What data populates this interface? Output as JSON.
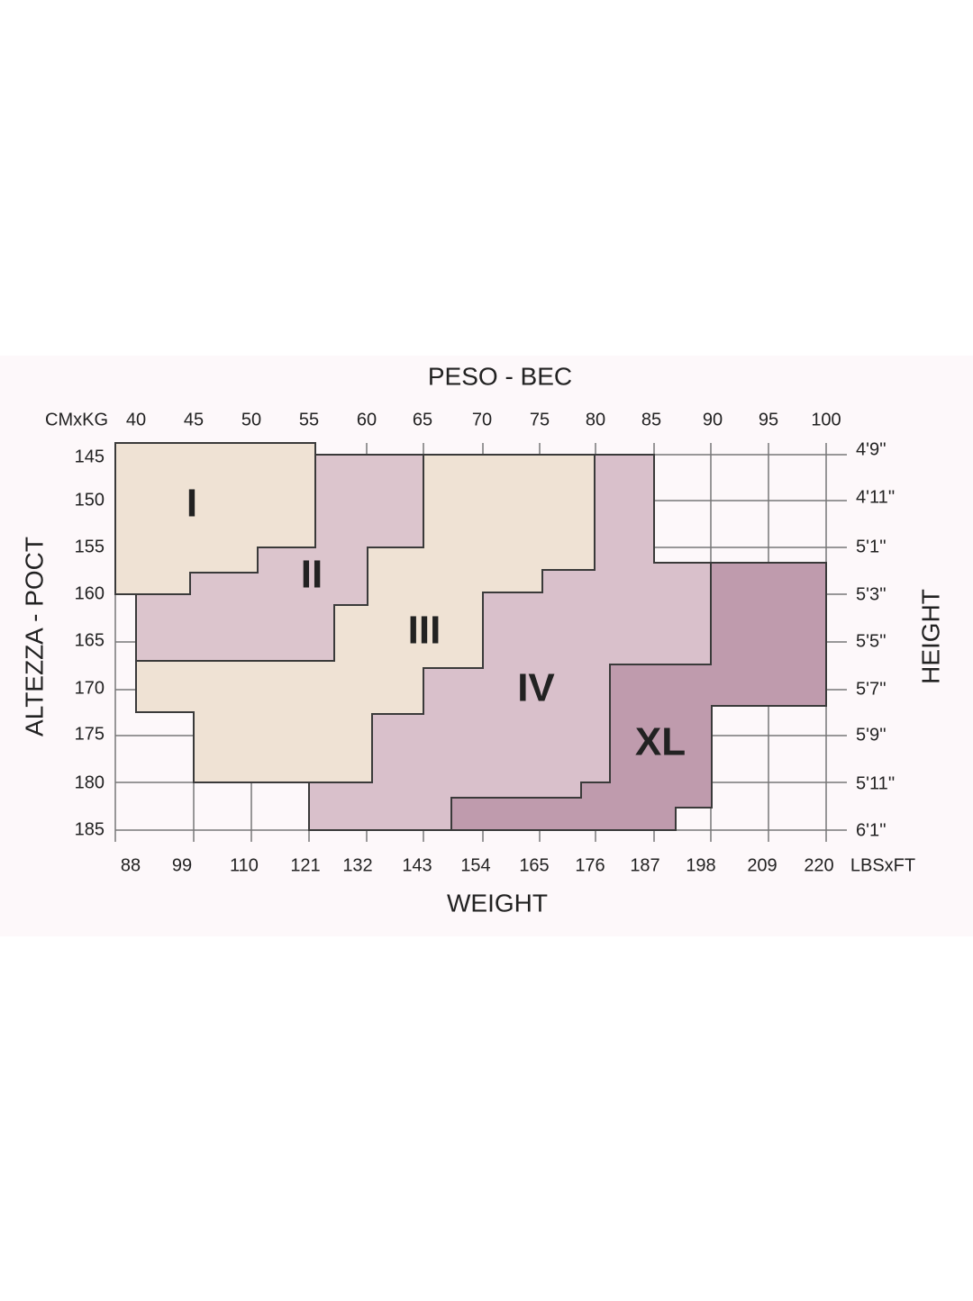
{
  "title": "PESO - BEC",
  "corner_label": "CMxKG",
  "kg": [
    40,
    45,
    50,
    55,
    60,
    65,
    70,
    75,
    80,
    85,
    90,
    95,
    100
  ],
  "cm": [
    145,
    150,
    155,
    160,
    165,
    170,
    175,
    180,
    185
  ],
  "ft": [
    "4'9''",
    "4'11''",
    "5'1''",
    "5'3''",
    "5'5''",
    "5'7''",
    "5'9''",
    "5'11''",
    "6'1''"
  ],
  "lbs": [
    88,
    99,
    110,
    121,
    132,
    143,
    154,
    165,
    176,
    187,
    198,
    209,
    220
  ],
  "lbs_unit": "LBSxFT",
  "bottom_title": "WEIGHT",
  "left_title": "ALTEZZA - POCT",
  "right_title": "HEIGHT",
  "sizes": [
    "I",
    "II",
    "III",
    "IV",
    "XL"
  ]
}
